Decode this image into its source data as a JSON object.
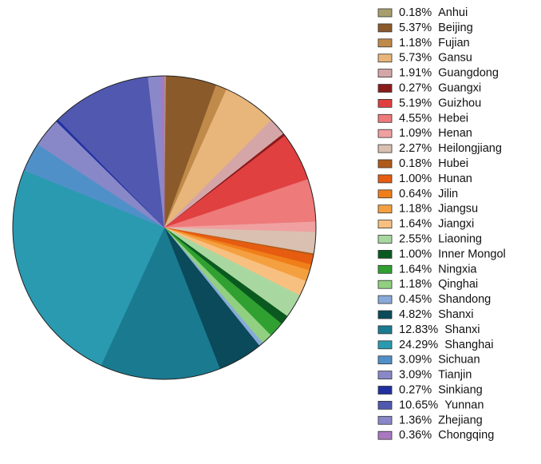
{
  "chart_data": {
    "type": "pie",
    "categories": [
      "Anhui",
      "Beijing",
      "Fujian",
      "Gansu",
      "Guangdong",
      "Guangxi",
      "Guizhou",
      "Hebei",
      "Henan",
      "Heilongjiang",
      "Hubei",
      "Hunan",
      "Jilin",
      "Jiangsu",
      "Jiangxi",
      "Liaoning",
      "Inner Mongol",
      "Ningxia",
      "Qinghai",
      "Shandong",
      "Shanxi",
      "Shanxi",
      "Shanghai",
      "Sichuan",
      "Tianjin",
      "Sinkiang",
      "Yunnan",
      "Zhejiang",
      "Chongqing"
    ],
    "values": [
      0.18,
      5.37,
      1.18,
      5.73,
      1.91,
      0.27,
      5.19,
      4.55,
      1.09,
      2.27,
      0.18,
      1.0,
      0.64,
      1.18,
      1.64,
      2.55,
      1.0,
      1.64,
      1.18,
      0.45,
      4.82,
      12.83,
      24.29,
      3.09,
      3.09,
      0.27,
      10.65,
      1.36,
      0.36
    ],
    "value_labels": [
      "0.18%",
      "5.37%",
      "1.18%",
      "5.73%",
      "1.91%",
      "0.27%",
      "5.19%",
      "4.55%",
      "1.09%",
      "2.27%",
      "0.18%",
      "1.00%",
      "0.64%",
      "1.18%",
      "1.64%",
      "2.55%",
      "1.00%",
      "1.64%",
      "1.18%",
      "0.45%",
      "4.82%",
      "12.83%",
      "24.29%",
      "3.09%",
      "3.09%",
      "0.27%",
      "10.65%",
      "1.36%",
      "0.36%"
    ],
    "colors": [
      "#a89f6e",
      "#8b5a2b",
      "#c08a4a",
      "#e8b57a",
      "#d4a6a8",
      "#8b1a1a",
      "#e04040",
      "#ee7a7a",
      "#f0a0a0",
      "#d9c0b0",
      "#b05a1a",
      "#e65c10",
      "#f07f1a",
      "#f5a040",
      "#f8c080",
      "#a8d8a0",
      "#0a5a20",
      "#30a030",
      "#90d080",
      "#88aad8",
      "#0a4a5a",
      "#1a7a90",
      "#2a9ab0",
      "#5090c8",
      "#8888c8",
      "#2030a0",
      "#5058b0",
      "#8a88c8",
      "#a878c0"
    ],
    "legend": "right"
  }
}
